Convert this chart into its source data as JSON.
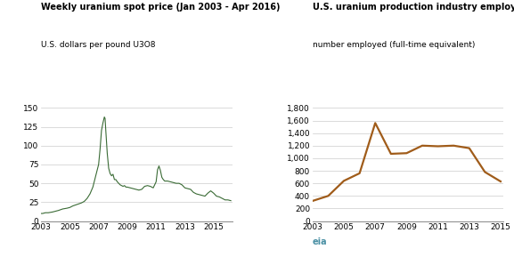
{
  "left_title": "Weekly uranium spot price (Jan 2003 - Apr 2016)",
  "left_subtitle": "U.S. dollars per pound U3O8",
  "right_title": "U.S. uranium production industry employment",
  "right_subtitle": "number employed (full-time equivalent)",
  "left_color": "#3a6b35",
  "right_color": "#a05c1a",
  "left_xlim": [
    2003,
    2016.3
  ],
  "left_ylim": [
    0,
    150
  ],
  "left_yticks": [
    0,
    25,
    50,
    75,
    100,
    125,
    150
  ],
  "left_xticks": [
    2003,
    2005,
    2007,
    2009,
    2011,
    2013,
    2015
  ],
  "right_xlim": [
    2003,
    2015.2
  ],
  "right_ylim": [
    0,
    1800
  ],
  "right_yticks": [
    0,
    200,
    400,
    600,
    800,
    1000,
    1200,
    1400,
    1600,
    1800
  ],
  "right_xticks": [
    2003,
    2005,
    2007,
    2009,
    2011,
    2013,
    2015
  ],
  "spot_price_x": [
    2003.0,
    2003.1,
    2003.3,
    2003.5,
    2003.8,
    2004.0,
    2004.2,
    2004.5,
    2004.8,
    2005.0,
    2005.2,
    2005.5,
    2005.8,
    2006.0,
    2006.2,
    2006.4,
    2006.6,
    2006.8,
    2007.0,
    2007.1,
    2007.2,
    2007.3,
    2007.4,
    2007.45,
    2007.5,
    2007.6,
    2007.7,
    2007.8,
    2007.9,
    2008.0,
    2008.1,
    2008.2,
    2008.3,
    2008.4,
    2008.5,
    2008.6,
    2008.7,
    2008.8,
    2008.9,
    2009.0,
    2009.2,
    2009.4,
    2009.6,
    2009.8,
    2010.0,
    2010.2,
    2010.4,
    2010.6,
    2010.8,
    2011.0,
    2011.1,
    2011.2,
    2011.3,
    2011.4,
    2011.5,
    2011.6,
    2011.8,
    2012.0,
    2012.2,
    2012.4,
    2012.6,
    2012.8,
    2013.0,
    2013.2,
    2013.4,
    2013.6,
    2013.8,
    2014.0,
    2014.2,
    2014.4,
    2014.6,
    2014.8,
    2015.0,
    2015.2,
    2015.4,
    2015.6,
    2015.8,
    2016.0,
    2016.2
  ],
  "spot_price_y": [
    10,
    10,
    11,
    11,
    12,
    13,
    14,
    16,
    17,
    18,
    20,
    22,
    24,
    26,
    30,
    36,
    45,
    60,
    75,
    95,
    120,
    130,
    138,
    136,
    120,
    90,
    70,
    63,
    60,
    62,
    55,
    55,
    52,
    50,
    48,
    47,
    46,
    47,
    45,
    45,
    44,
    43,
    42,
    41,
    42,
    46,
    47,
    46,
    44,
    52,
    68,
    73,
    67,
    58,
    55,
    53,
    53,
    52,
    51,
    50,
    50,
    48,
    44,
    43,
    42,
    38,
    36,
    35,
    34,
    33,
    37,
    40,
    37,
    33,
    32,
    30,
    28,
    28,
    27
  ],
  "employment_x": [
    2003,
    2004,
    2005,
    2006,
    2007,
    2008,
    2009,
    2010,
    2011,
    2012,
    2013,
    2014,
    2015
  ],
  "employment_y": [
    320,
    400,
    640,
    760,
    1560,
    1070,
    1080,
    1200,
    1190,
    1200,
    1160,
    780,
    630
  ],
  "eia_color": "#4a90a4",
  "grid_color": "#cccccc",
  "bg_color": "#ffffff"
}
